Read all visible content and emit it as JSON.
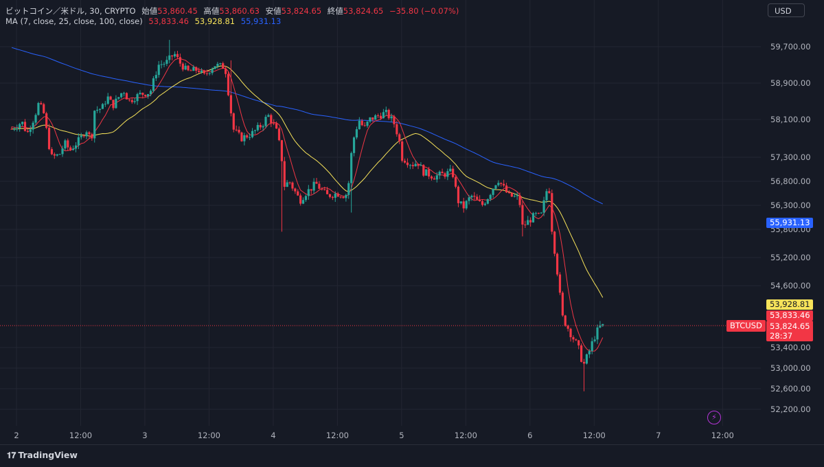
{
  "header": {
    "symbol_line": "ビットコイン／米ドル, 30, CRYPTO",
    "open_label": "始値",
    "open_value": "53,860.45",
    "high_label": "高値",
    "high_value": "53,860.63",
    "low_label": "安値",
    "low_value": "53,824.65",
    "close_label": "終値",
    "close_value": "53,824.65",
    "change": "−35.80 (−0.07%)",
    "ma_label": "MA (7, close, 25, close, 100, close)",
    "ma7_value": "53,833.46",
    "ma25_value": "53,928.81",
    "ma100_value": "55,931.13"
  },
  "currency_button": "USD",
  "price_labels": {
    "ma100": "55,931.13",
    "ma25": "53,928.81",
    "ma7": "53,833.46",
    "last": "53,824.65",
    "countdown": "28:37",
    "symbol_tag": "BTCUSD"
  },
  "brand": "TradingView",
  "colors": {
    "background": "#161a25",
    "up": "#26a69a",
    "down": "#f23645",
    "ma7": "#f23645",
    "ma25": "#f7e35a",
    "ma100": "#2962ff"
  },
  "chart_data": {
    "type": "candlestick",
    "interval": "30",
    "y_tick_labels": [
      "59,700.00",
      "58,900.00",
      "58,100.00",
      "57,300.00",
      "56,800.00",
      "56,300.00",
      "55,800.00",
      "55,200.00",
      "54,600.00",
      "53,400.00",
      "53,000.00",
      "52,600.00",
      "52,200.00"
    ],
    "y_tick_values": [
      59700,
      58900,
      58100,
      57300,
      56800,
      56300,
      55800,
      55200,
      54600,
      53400,
      53000,
      52600,
      52200
    ],
    "ylim": [
      51850,
      60200
    ],
    "x_tick_labels": [
      "2",
      "12:00",
      "3",
      "12:00",
      "4",
      "12:00",
      "5",
      "12:00",
      "6",
      "12:00",
      "7",
      "12:00"
    ],
    "x_tick_hours": [
      0,
      12,
      24,
      36,
      48,
      60,
      72,
      84,
      96,
      108,
      120,
      132
    ],
    "x_range_hours": [
      -0.9,
      135.5
    ],
    "last_price": 53824.65,
    "anchors": [
      [
        -0.9,
        57900
      ],
      [
        1,
        58050
      ],
      [
        2,
        57800
      ],
      [
        3.5,
        58200
      ],
      [
        4,
        58450
      ],
      [
        5,
        58300
      ],
      [
        6,
        57600
      ],
      [
        6.5,
        57300
      ],
      [
        8,
        57350
      ],
      [
        9,
        57600
      ],
      [
        10,
        57450
      ],
      [
        12,
        57700
      ],
      [
        13,
        57900
      ],
      [
        14,
        57650
      ],
      [
        14.5,
        58300
      ],
      [
        16,
        58350
      ],
      [
        17,
        58600
      ],
      [
        18,
        58400
      ],
      [
        20,
        58750
      ],
      [
        21,
        58500
      ],
      [
        23,
        58650
      ],
      [
        25,
        58700
      ],
      [
        26.5,
        59300
      ],
      [
        28,
        59350
      ],
      [
        29.5,
        59550
      ],
      [
        30.5,
        59350
      ],
      [
        32,
        59150
      ],
      [
        34,
        59200
      ],
      [
        35,
        59050
      ],
      [
        37,
        59300
      ],
      [
        39,
        59250
      ],
      [
        40.5,
        57900
      ],
      [
        42,
        57700
      ],
      [
        44,
        57800
      ],
      [
        46,
        58000
      ],
      [
        47,
        58200
      ],
      [
        48.5,
        57900
      ],
      [
        49.5,
        57400
      ],
      [
        50,
        56700
      ],
      [
        51,
        56800
      ],
      [
        53,
        56400
      ],
      [
        54,
        56550
      ],
      [
        56,
        56750
      ],
      [
        58,
        56500
      ],
      [
        60,
        56550
      ],
      [
        61.5,
        56500
      ],
      [
        62,
        56650
      ],
      [
        62.8,
        57600
      ],
      [
        64,
        58100
      ],
      [
        65,
        57900
      ],
      [
        66,
        58100
      ],
      [
        68,
        58200
      ],
      [
        69,
        58250
      ],
      [
        70.5,
        58050
      ],
      [
        71.5,
        57700
      ],
      [
        72,
        57300
      ],
      [
        74,
        57150
      ],
      [
        75,
        57200
      ],
      [
        76,
        57000
      ],
      [
        78,
        56900
      ],
      [
        80,
        56950
      ],
      [
        81.5,
        57000
      ],
      [
        82.5,
        56400
      ],
      [
        83.5,
        56250
      ],
      [
        85,
        56500
      ],
      [
        87,
        56300
      ],
      [
        88,
        56450
      ],
      [
        90,
        56850
      ],
      [
        92,
        56500
      ],
      [
        94,
        56450
      ],
      [
        94.5,
        55850
      ],
      [
        95.5,
        55950
      ],
      [
        97,
        56100
      ],
      [
        98,
        56050
      ],
      [
        99.5,
        56800
      ],
      [
        100,
        55900
      ],
      [
        101,
        55000
      ],
      [
        102,
        54000
      ],
      [
        103.5,
        53700
      ],
      [
        105,
        53400
      ],
      [
        106,
        53050
      ],
      [
        107,
        53300
      ],
      [
        108,
        53600
      ],
      [
        109,
        53800
      ],
      [
        110,
        53824.65
      ]
    ],
    "ma": [
      {
        "name": "MA 7",
        "period": 7,
        "source": "close",
        "value": 53833.46
      },
      {
        "name": "MA 25",
        "period": 25,
        "source": "close",
        "value": 53928.81
      },
      {
        "name": "MA 100",
        "period": 100,
        "source": "close",
        "value": 55931.13
      }
    ]
  }
}
